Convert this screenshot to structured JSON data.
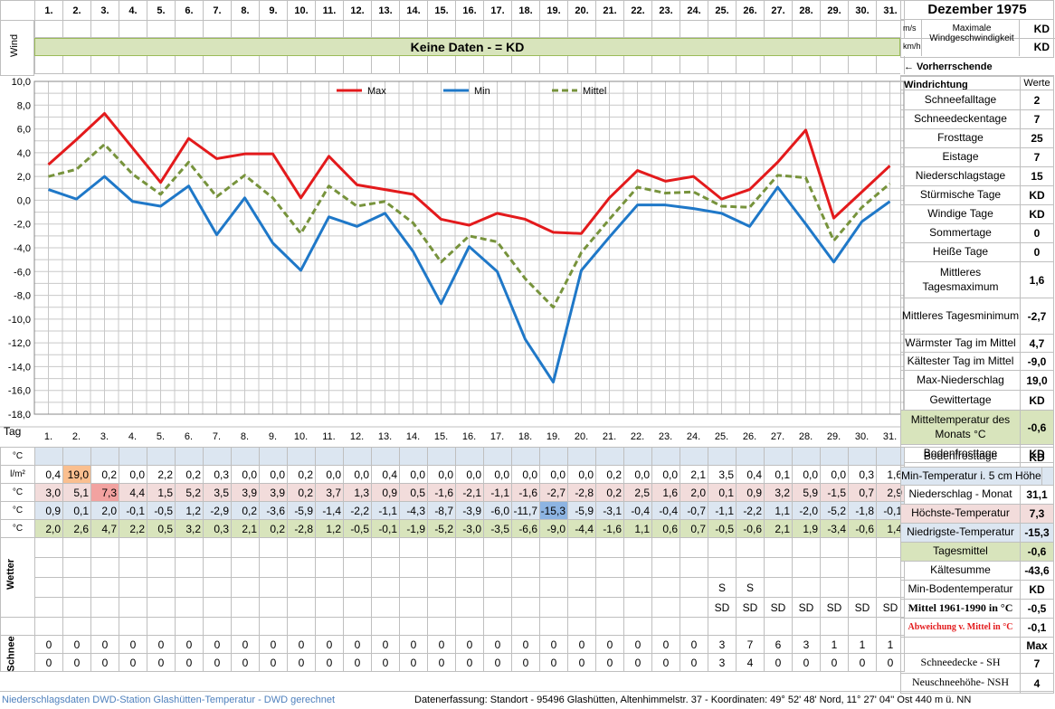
{
  "month_title": "Dezember 1975",
  "days": [
    "1.",
    "2.",
    "3.",
    "4.",
    "5.",
    "6.",
    "7.",
    "8.",
    "9.",
    "10.",
    "11.",
    "12.",
    "13.",
    "14.",
    "15.",
    "16.",
    "17.",
    "18.",
    "19.",
    "20.",
    "21.",
    "22.",
    "23.",
    "24.",
    "25.",
    "26.",
    "27.",
    "28.",
    "29.",
    "30.",
    "31."
  ],
  "wind": {
    "label": "Wind",
    "no_data": "Keine Daten -  = KD",
    "unit_ms": "m/s",
    "unit_kmh": "km/h",
    "desc": "Maximale Windgeschwindigkeit",
    "ms_value": "KD",
    "kmh_value": "KD",
    "direction": "← Vorherrschende Windrichtung"
  },
  "chart_data": {
    "type": "line",
    "x": [
      1,
      2,
      3,
      4,
      5,
      6,
      7,
      8,
      9,
      10,
      11,
      12,
      13,
      14,
      15,
      16,
      17,
      18,
      19,
      20,
      21,
      22,
      23,
      24,
      25,
      26,
      27,
      28,
      29,
      30,
      31
    ],
    "ylim": [
      -18,
      10
    ],
    "yticks": [
      "10,0",
      "8,0",
      "6,0",
      "4,0",
      "2,0",
      "0,0",
      "-2,0",
      "-4,0",
      "-6,0",
      "-8,0",
      "-10,0",
      "-12,0",
      "-14,0",
      "-16,0",
      "-18,0"
    ],
    "grid": true,
    "legend_position": "top",
    "series": [
      {
        "name": "Max",
        "color": "#e31a1c",
        "values": [
          3.0,
          5.1,
          7.3,
          4.4,
          1.5,
          5.2,
          3.5,
          3.9,
          3.9,
          0.2,
          3.7,
          1.3,
          0.9,
          0.5,
          -1.6,
          -2.1,
          -1.1,
          -1.6,
          -2.7,
          -2.8,
          0.2,
          2.5,
          1.6,
          2.0,
          0.1,
          0.9,
          3.2,
          5.9,
          -1.5,
          0.7,
          2.9
        ]
      },
      {
        "name": "Min",
        "color": "#1f78c8",
        "values": [
          0.9,
          0.1,
          2.0,
          -0.1,
          -0.5,
          1.2,
          -2.9,
          0.2,
          -3.6,
          -5.9,
          -1.4,
          -2.2,
          -1.1,
          -4.3,
          -8.7,
          -3.9,
          -6.0,
          -11.7,
          -15.3,
          -5.9,
          -3.1,
          -0.4,
          -0.4,
          -0.7,
          -1.1,
          -2.2,
          1.1,
          -2.0,
          -5.2,
          -1.8,
          -0.1
        ]
      },
      {
        "name": "Mittel",
        "color": "#77933c",
        "values": [
          2.0,
          2.6,
          4.7,
          2.2,
          0.5,
          3.2,
          0.3,
          2.1,
          0.2,
          -2.8,
          1.2,
          -0.5,
          -0.1,
          -1.9,
          -5.2,
          -3.0,
          -3.5,
          -6.6,
          -9.0,
          -4.4,
          -1.6,
          1.1,
          0.6,
          0.7,
          -0.5,
          -0.6,
          2.1,
          1.9,
          -3.4,
          -0.6,
          1.4
        ]
      }
    ]
  },
  "stats_header": "Werte",
  "stats": [
    {
      "label": "Schneefalltage",
      "value": "2"
    },
    {
      "label": "Schneedeckentage",
      "value": "7"
    },
    {
      "label": "Frosttage",
      "value": "25"
    },
    {
      "label": "Eistage",
      "value": "7"
    },
    {
      "label": "Niederschlagstage",
      "value": "15"
    },
    {
      "label": "Stürmische Tage",
      "value": "KD"
    },
    {
      "label": "Windige Tage",
      "value": "KD"
    },
    {
      "label": "Sommertage",
      "value": "0"
    },
    {
      "label": "Heiße Tage",
      "value": "0"
    },
    {
      "label": "Mittleres Tagesmaximum",
      "value": "1,6"
    },
    {
      "label": "Mittleres Tagesminimum",
      "value": "-2,7"
    },
    {
      "label": "Wärmster Tag im Mittel",
      "value": "4,7"
    },
    {
      "label": "Kältester Tag im Mittel",
      "value": "-9,0"
    },
    {
      "label": "Max-Niederschlag",
      "value": "19,0"
    },
    {
      "label": "Gewittertage",
      "value": "KD"
    },
    {
      "label": "Mitteltemperatur des Monats °C",
      "value": "-0,6"
    },
    {
      "label": "Bodenfrosttage",
      "value": "KD"
    }
  ],
  "table": {
    "tag_label": "Tag",
    "rows": [
      {
        "unit": "°C",
        "values": [
          "",
          "",
          "",
          "",
          "",
          "",
          "",
          "",
          "",
          "",
          "",
          "",
          "",
          "",
          "",
          "",
          "",
          "",
          "",
          "",
          "",
          "",
          "",
          "",
          "",
          "",
          "",
          "",
          "",
          "",
          ""
        ],
        "label": "Min-Temperatur i. 5 cm Höhe",
        "summary": ""
      },
      {
        "unit": "l/m²",
        "values": [
          "0,4",
          "19,0",
          "0,2",
          "0,0",
          "2,2",
          "0,2",
          "0,3",
          "0,0",
          "0,0",
          "0,2",
          "0,0",
          "0,0",
          "0,4",
          "0,0",
          "0,0",
          "0,0",
          "0,0",
          "0,0",
          "0,0",
          "0,0",
          "0,2",
          "0,0",
          "0,0",
          "2,1",
          "3,5",
          "0,4",
          "0,1",
          "0,0",
          "0,0",
          "0,3",
          "1,6"
        ],
        "label": "Niederschlag - Monat",
        "summary": "31,1"
      },
      {
        "unit": "°C",
        "values": [
          "3,0",
          "5,1",
          "7,3",
          "4,4",
          "1,5",
          "5,2",
          "3,5",
          "3,9",
          "3,9",
          "0,2",
          "3,7",
          "1,3",
          "0,9",
          "0,5",
          "-1,6",
          "-2,1",
          "-1,1",
          "-1,6",
          "-2,7",
          "-2,8",
          "0,2",
          "2,5",
          "1,6",
          "2,0",
          "0,1",
          "0,9",
          "3,2",
          "5,9",
          "-1,5",
          "0,7",
          "2,9"
        ],
        "label": "Höchste-Temperatur",
        "summary": "7,3"
      },
      {
        "unit": "°C",
        "values": [
          "0,9",
          "0,1",
          "2,0",
          "-0,1",
          "-0,5",
          "1,2",
          "-2,9",
          "0,2",
          "-3,6",
          "-5,9",
          "-1,4",
          "-2,2",
          "-1,1",
          "-4,3",
          "-8,7",
          "-3,9",
          "-6,0",
          "-11,7",
          "-15,3",
          "-5,9",
          "-3,1",
          "-0,4",
          "-0,4",
          "-0,7",
          "-1,1",
          "-2,2",
          "1,1",
          "-2,0",
          "-5,2",
          "-1,8",
          "-0,1"
        ],
        "label": "Niedrigste-Temperatur",
        "summary": "-15,3"
      },
      {
        "unit": "°C",
        "values": [
          "2,0",
          "2,6",
          "4,7",
          "2,2",
          "0,5",
          "3,2",
          "0,3",
          "2,1",
          "0,2",
          "-2,8",
          "1,2",
          "-0,5",
          "-0,1",
          "-1,9",
          "-5,2",
          "-3,0",
          "-3,5",
          "-6,6",
          "-9,0",
          "-4,4",
          "-1,6",
          "1,1",
          "0,6",
          "0,7",
          "-0,5",
          "-0,6",
          "2,1",
          "1,9",
          "-3,4",
          "-0,6",
          "1,4"
        ],
        "label": "Tagesmittel",
        "summary": "-0,6"
      }
    ],
    "extra_labels": [
      {
        "label": "Kältesumme",
        "value": "-43,6"
      },
      {
        "label": "Min-Bodentemperatur",
        "value": "KD"
      },
      {
        "label": "Mittel 1961-1990 in °C",
        "value": "-0,5"
      },
      {
        "label": "Abweichung v. Mittel in °C",
        "value": "-0,1"
      },
      {
        "label": "",
        "value": "Max"
      }
    ],
    "wetter_label": "Wetter",
    "wetter_s": [
      "",
      "",
      "",
      "",
      "",
      "",
      "",
      "",
      "",
      "",
      "",
      "",
      "",
      "",
      "",
      "",
      "",
      "",
      "",
      "",
      "",
      "",
      "",
      "",
      "S",
      "S",
      "",
      "",
      "",
      "",
      ""
    ],
    "wetter_sd": [
      "",
      "",
      "",
      "",
      "",
      "",
      "",
      "",
      "",
      "",
      "",
      "",
      "",
      "",
      "",
      "",
      "",
      "",
      "",
      "",
      "",
      "",
      "",
      "",
      "SD",
      "SD",
      "SD",
      "SD",
      "SD",
      "SD",
      "SD"
    ],
    "schnee_label": "Schnee",
    "sh": [
      "0",
      "0",
      "0",
      "0",
      "0",
      "0",
      "0",
      "0",
      "0",
      "0",
      "0",
      "0",
      "0",
      "0",
      "0",
      "0",
      "0",
      "0",
      "0",
      "0",
      "0",
      "0",
      "0",
      "0",
      "3",
      "7",
      "6",
      "3",
      "1",
      "1",
      "1"
    ],
    "sh_label": "Schneedecke -  SH",
    "sh_max": "7",
    "nsh": [
      "0",
      "0",
      "0",
      "0",
      "0",
      "0",
      "0",
      "0",
      "0",
      "0",
      "0",
      "0",
      "0",
      "0",
      "0",
      "0",
      "0",
      "0",
      "0",
      "0",
      "0",
      "0",
      "0",
      "0",
      "3",
      "4",
      "0",
      "0",
      "0",
      "0",
      "0"
    ],
    "nsh_label": "Neuschneehöhe- NSH",
    "nsh_max": "4"
  },
  "footer": {
    "left": "Niederschlagsdaten DWD-Station Glashütten-Temperatur -  DWD gerechnet",
    "right": "Datenerfassung: Standort -  95496  Glashütten, Altenhimmelstr. 37 - Koordinaten:  49° 52' 48' Nord,  11° 27' 04'' Ost   440 m ü. NN"
  }
}
